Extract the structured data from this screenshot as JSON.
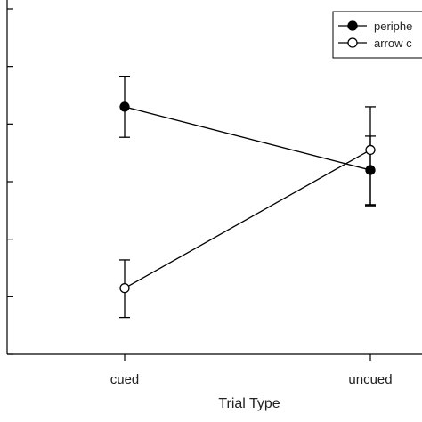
{
  "chart_data": {
    "type": "line",
    "title": "",
    "xlabel": "Trial Type",
    "ylabel": "",
    "categories": [
      "cued",
      "uncued"
    ],
    "ylim": [
      0,
      6
    ],
    "series": [
      {
        "name": "periphe",
        "marker": "filled",
        "color": "#000000",
        "values": [
          4.3,
          3.2
        ],
        "err_lower": [
          3.77,
          2.58
        ],
        "err_upper": [
          4.83,
          3.79
        ]
      },
      {
        "name": "arrow c",
        "marker": "open",
        "color": "#000000",
        "values": [
          1.15,
          3.55
        ],
        "err_lower": [
          0.64,
          2.6
        ],
        "err_upper": [
          1.64,
          4.3
        ]
      }
    ],
    "grid": false,
    "legend_position": "top-right"
  }
}
